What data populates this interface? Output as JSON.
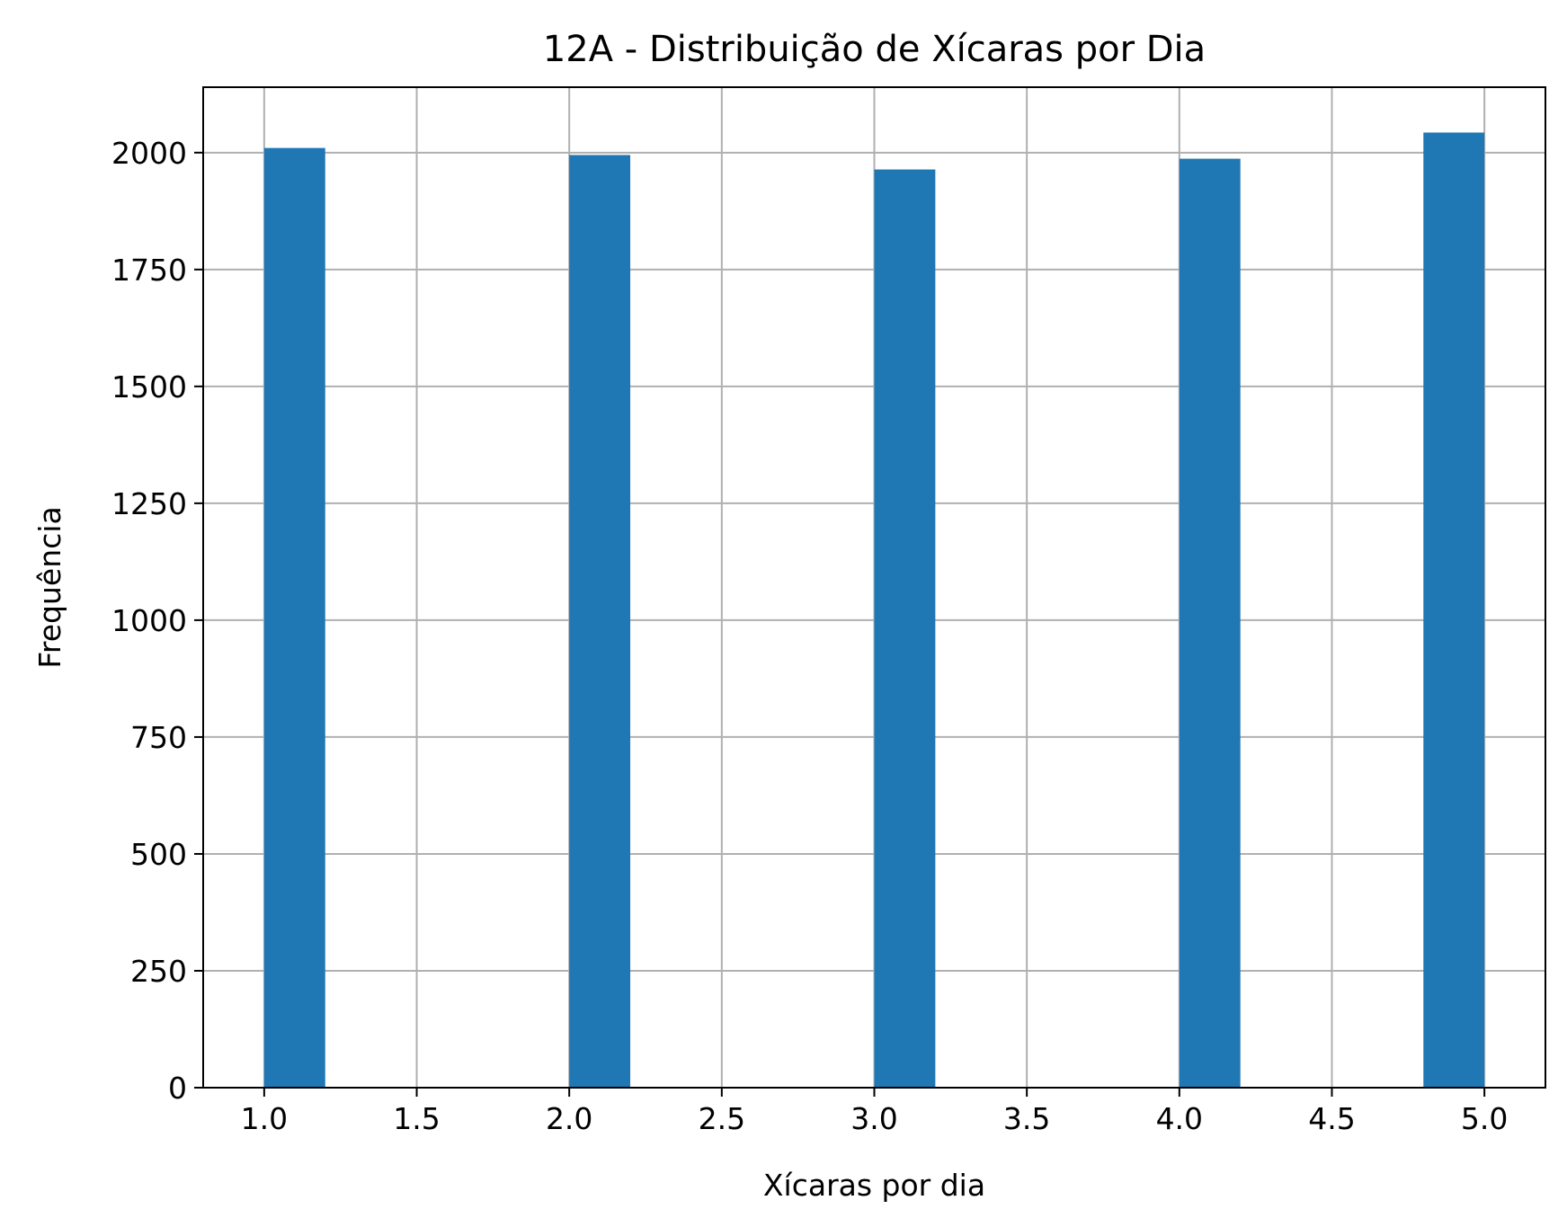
{
  "chart_data": {
    "type": "bar",
    "title": "12A - Distribuição de Xícaras por Dia",
    "xlabel": "Xícaras por dia",
    "ylabel": "Frequência",
    "xlim": [
      0.8,
      5.2
    ],
    "ylim": [
      0,
      2140
    ],
    "xticks": [
      1.0,
      1.5,
      2.0,
      2.5,
      3.0,
      3.5,
      4.0,
      4.5,
      5.0
    ],
    "xtick_labels": [
      "1.0",
      "1.5",
      "2.0",
      "2.5",
      "3.0",
      "3.5",
      "4.0",
      "4.5",
      "5.0"
    ],
    "yticks": [
      0,
      250,
      500,
      750,
      1000,
      1250,
      1500,
      1750,
      2000
    ],
    "ytick_labels": [
      "0",
      "250",
      "500",
      "750",
      "1000",
      "1250",
      "1500",
      "1750",
      "2000"
    ],
    "grid": true,
    "bar_color": "#1f77b4",
    "grid_color": "#b0b0b0",
    "bins": [
      {
        "start": 1.0,
        "end": 1.2,
        "value": 2010
      },
      {
        "start": 2.0,
        "end": 2.2,
        "value": 1995
      },
      {
        "start": 3.0,
        "end": 3.2,
        "value": 1964
      },
      {
        "start": 4.0,
        "end": 4.2,
        "value": 1987
      },
      {
        "start": 4.8,
        "end": 5.0,
        "value": 2043
      }
    ]
  }
}
